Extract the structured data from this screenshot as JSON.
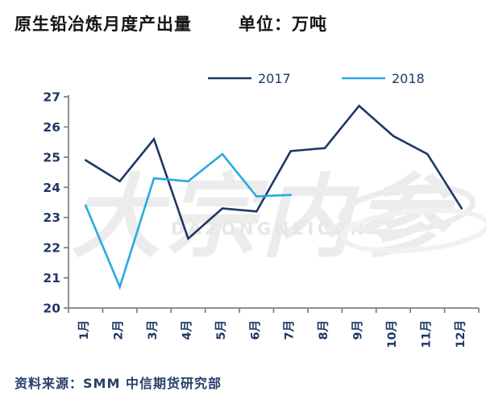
{
  "header": {
    "title": "原生铅冶炼月度产出量",
    "unit_label": "单位：万吨"
  },
  "source": {
    "text": "资料来源：SMM 中信期货研究部"
  },
  "watermark": {
    "cn": "大宗内参",
    "en": "DAZONGNEICAN"
  },
  "chart_data": {
    "type": "line",
    "title": "原生铅冶炼月度产出量",
    "unit": "万吨",
    "categories": [
      "1月",
      "2月",
      "3月",
      "4月",
      "5月",
      "6月",
      "7月",
      "8月",
      "9月",
      "10月",
      "11月",
      "12月"
    ],
    "series": [
      {
        "name": "2017",
        "color": "#1F3864",
        "values": [
          24.9,
          24.2,
          25.6,
          22.3,
          23.3,
          23.2,
          25.2,
          25.3,
          26.7,
          25.7,
          25.1,
          23.3
        ]
      },
      {
        "name": "2018",
        "color": "#29A9E0",
        "values": [
          23.4,
          20.7,
          24.3,
          24.2,
          25.1,
          23.7,
          23.75
        ]
      }
    ],
    "ylim": [
      20,
      27
    ],
    "ytick_step": 1,
    "yticks": [
      20,
      21,
      22,
      23,
      24,
      25,
      26,
      27
    ],
    "grid": false,
    "legend_position": "top",
    "axis_color": "#7F7F7F",
    "label_color": "#1F3864",
    "watermark_color": "#ECECEC"
  }
}
